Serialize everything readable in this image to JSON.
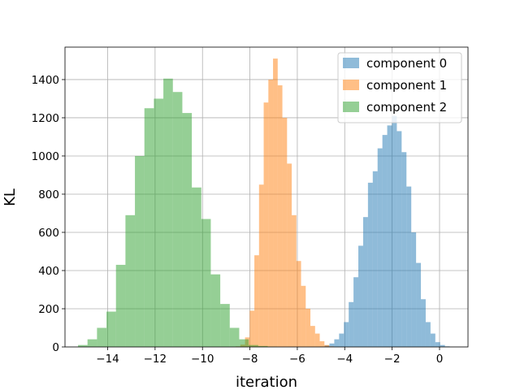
{
  "chart_data": {
    "type": "histogram",
    "xlabel": "iteration",
    "ylabel": "KL",
    "xlim": [
      -15.8,
      1.2
    ],
    "ylim": [
      0,
      1570
    ],
    "xticks": [
      -14,
      -12,
      -10,
      -8,
      -6,
      -4,
      -2,
      0
    ],
    "xtick_labels": [
      "−14",
      "−12",
      "−10",
      "−8",
      "−6",
      "−4",
      "−2",
      "0"
    ],
    "yticks": [
      0,
      200,
      400,
      600,
      800,
      1000,
      1200,
      1400
    ],
    "ytick_labels": [
      "0",
      "200",
      "400",
      "600",
      "800",
      "1000",
      "1200",
      "1400"
    ],
    "grid": true,
    "legend_position": "top-right",
    "bar_alpha": 0.5,
    "series": [
      {
        "name": "component 0",
        "color": "#1f77b4",
        "bin_start": -5.05,
        "bin_width": 0.203,
        "counts": [
          2,
          8,
          18,
          40,
          70,
          130,
          235,
          365,
          530,
          680,
          860,
          920,
          1040,
          1110,
          1160,
          1210,
          1130,
          1020,
          840,
          600,
          440,
          250,
          130,
          70,
          25,
          10,
          3
        ]
      },
      {
        "name": "component 1",
        "color": "#ff7f0e",
        "bin_start": -8.6,
        "bin_width": 0.197,
        "counts": [
          3,
          12,
          50,
          190,
          480,
          850,
          1280,
          1400,
          1510,
          1370,
          1200,
          960,
          690,
          450,
          320,
          200,
          110,
          70,
          30,
          10,
          3
        ]
      },
      {
        "name": "component 2",
        "color": "#2ca02c",
        "bin_start": -15.25,
        "bin_width": 0.4,
        "counts": [
          10,
          40,
          100,
          185,
          430,
          690,
          1000,
          1250,
          1300,
          1405,
          1335,
          1225,
          835,
          670,
          380,
          225,
          100,
          40,
          10,
          5,
          2
        ]
      }
    ]
  }
}
